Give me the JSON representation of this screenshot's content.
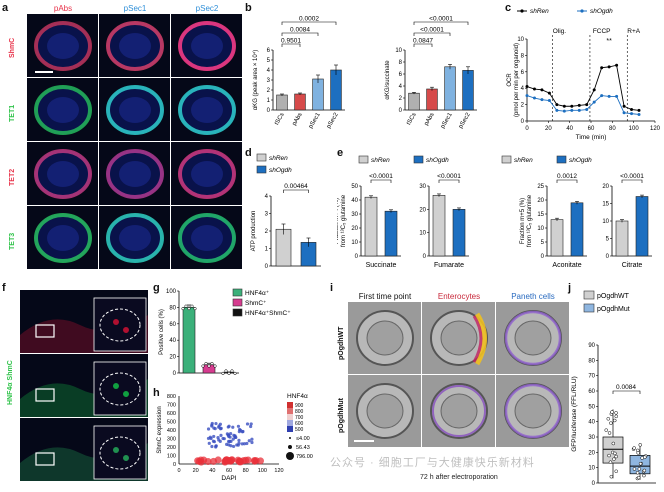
{
  "panels": {
    "a": "a",
    "b": "b",
    "c": "c",
    "d": "d",
    "e": "e",
    "f": "f",
    "g": "g",
    "h": "h",
    "i": "i",
    "j": "j"
  },
  "a": {
    "cols": [
      "pAbs",
      "pSec1",
      "pSec2"
    ],
    "rows": [
      "ShmC",
      "TET1",
      "TET2",
      "TET3"
    ],
    "colors": {
      "pAbs": "#e8334a",
      "pSec1": "#2f8fd8",
      "pSec2": "#2f8fd8",
      "ShmC": "#e8334a",
      "TET1": "#2fc34a",
      "TET2": "#e8334a",
      "TET3": "#2fc34a"
    }
  },
  "b": {
    "left": {
      "ylabel": "αKG (peak area × 10⁴)",
      "categories": [
        "tSCs",
        "pAbs",
        "pSec1",
        "pSec2"
      ],
      "values": [
        1.5,
        1.6,
        3.1,
        4.0
      ],
      "errors": [
        0.1,
        0.1,
        0.4,
        0.5
      ],
      "yticks": [
        "0",
        "1",
        "2",
        "3",
        "4",
        "5",
        "6"
      ],
      "ymax": 6,
      "brackets": [
        {
          "from": 0,
          "to": 3,
          "label": "0.0002"
        },
        {
          "from": 0,
          "to": 2,
          "label": "0.0084"
        },
        {
          "from": 0,
          "to": 1,
          "label": "0.9501"
        }
      ]
    },
    "right": {
      "ylabel": "αKG/succinate",
      "categories": [
        "tSCs",
        "pAbs",
        "pSec1",
        "pSec2"
      ],
      "values": [
        2.8,
        3.5,
        7.2,
        6.6
      ],
      "errors": [
        0.15,
        0.3,
        0.4,
        0.6
      ],
      "yticks": [
        "0",
        "2",
        "4",
        "6",
        "8",
        "10"
      ],
      "ymax": 10,
      "brackets": [
        {
          "from": 0,
          "to": 3,
          "label": "<0.0001"
        },
        {
          "from": 0,
          "to": 2,
          "label": "<0.0001"
        },
        {
          "from": 0,
          "to": 1,
          "label": "0.0847"
        }
      ]
    },
    "colors": [
      "#b0b0b0",
      "#d64a4a",
      "#7fb2e0",
      "#1d6fc0"
    ]
  },
  "c": {
    "legend": [
      {
        "label": "shRen",
        "color": "#000000"
      },
      {
        "label": "shOgdh",
        "color": "#1d6fc0"
      }
    ],
    "ylabel": "OCR\n(pmol per min per organoid)",
    "xlabel": "Time (min)",
    "yticks": [
      "0",
      "2",
      "4",
      "6",
      "8",
      "10"
    ],
    "xticks": [
      "0",
      "20",
      "40",
      "60",
      "80",
      "100",
      "120"
    ],
    "annotations": [
      "Olig.",
      "FCCP",
      "R+A"
    ],
    "sig": "**",
    "shRen": [
      [
        0,
        4.2
      ],
      [
        7,
        3.9
      ],
      [
        14,
        3.8
      ],
      [
        21,
        3.4
      ],
      [
        28,
        2.0
      ],
      [
        35,
        1.8
      ],
      [
        42,
        1.8
      ],
      [
        49,
        1.9
      ],
      [
        56,
        2.0
      ],
      [
        63,
        3.8
      ],
      [
        70,
        6.5
      ],
      [
        77,
        6.6
      ],
      [
        84,
        6.8
      ],
      [
        91,
        1.8
      ],
      [
        98,
        1.4
      ],
      [
        105,
        1.3
      ]
    ],
    "shOgdh": [
      [
        0,
        3.1
      ],
      [
        7,
        2.8
      ],
      [
        14,
        2.6
      ],
      [
        21,
        2.5
      ],
      [
        28,
        1.3
      ],
      [
        35,
        1.2
      ],
      [
        42,
        1.3
      ],
      [
        49,
        1.3
      ],
      [
        56,
        1.4
      ],
      [
        63,
        2.3
      ],
      [
        70,
        3.1
      ],
      [
        77,
        3.0
      ],
      [
        84,
        3.0
      ],
      [
        91,
        1.0
      ],
      [
        98,
        0.9
      ],
      [
        105,
        0.8
      ]
    ],
    "xmax": 120,
    "ymax": 10
  },
  "d": {
    "legend": [
      {
        "label": "shRen",
        "color": "#d0d0d0"
      },
      {
        "label": "shOgdh",
        "color": "#1d6fc0"
      }
    ],
    "ylabel": "ATP production",
    "yticks": [
      "0",
      "1",
      "2",
      "3",
      "4"
    ],
    "values": [
      2.1,
      1.35
    ],
    "errors": [
      0.3,
      0.25
    ],
    "p": "0.00464",
    "ymax": 4
  },
  "e": {
    "legend": [
      {
        "label": "shRen",
        "color": "#d0d0d0"
      },
      {
        "label": "shOgdh",
        "color": "#1d6fc0"
      }
    ],
    "ylabel1": "Fraction m+4 (%)\nfrom ¹³C₅ glutamine",
    "ylabel2": "Fraction m+5 (%)\nfrom ¹³C₅ glutamine",
    "charts": [
      {
        "name": "Succinate",
        "values": [
          42,
          32
        ],
        "p": "<0.0001",
        "yticks": [
          "0",
          "10",
          "20",
          "30",
          "40",
          "50"
        ],
        "ymax": 50
      },
      {
        "name": "Fumarate",
        "values": [
          26,
          20
        ],
        "p": "<0.0001",
        "yticks": [
          "0",
          "10",
          "20",
          "30"
        ],
        "ymax": 30
      },
      {
        "name": "Aconitate",
        "values": [
          13,
          19
        ],
        "p": "0.0012",
        "yticks": [
          "0",
          "5",
          "10",
          "15",
          "20",
          "25"
        ],
        "ymax": 25
      },
      {
        "name": "Citrate",
        "values": [
          10,
          17
        ],
        "p": "<0.0001",
        "yticks": [
          "0",
          "5",
          "10",
          "15",
          "20"
        ],
        "ymax": 20
      }
    ]
  },
  "f": {
    "rowlabel": "HNF4α ShmC"
  },
  "g": {
    "legend": [
      {
        "label": "HNF4α⁺",
        "color": "#3bb07a"
      },
      {
        "label": "ShmC⁺",
        "color": "#d63b8f"
      },
      {
        "label": "HNF4α⁺ShmC⁺",
        "color": "#111111"
      }
    ],
    "ylabel": "Positive cells (%)",
    "yticks": [
      "0",
      "20",
      "40",
      "60",
      "80",
      "100"
    ],
    "values": [
      80,
      10,
      1
    ],
    "ymax": 100
  },
  "h": {
    "ylabel": "ShmC expression",
    "xlabel": "DAPI",
    "xticks": [
      "0",
      "20",
      "40",
      "60",
      "80",
      "100",
      "120"
    ],
    "yticks": [
      "0",
      "100",
      "200",
      "300",
      "400",
      "500",
      "600",
      "700",
      "800"
    ],
    "legendtitle": "HNF4α",
    "scale": [
      "900",
      "800",
      "700",
      "600",
      "500"
    ],
    "sizes": [
      "≤4.00",
      "56.43",
      "796.00"
    ]
  },
  "i": {
    "cols": [
      "First time point",
      "Enterocytes",
      "Paneth cells"
    ],
    "colcolors": [
      "#111111",
      "#c8283a",
      "#2a6bc0"
    ],
    "rows": [
      "pOgdhWT",
      "pOgdhMut"
    ],
    "caption": "72 h after electroporation"
  },
  "j": {
    "legend": [
      {
        "label": "pOgdhWT",
        "color": "#d0d0d0"
      },
      {
        "label": "pOgdhMut",
        "color": "#8fb6e0"
      }
    ],
    "ylabel": "GFP/luciferase (FFL/RLU)",
    "yticks": [
      "0",
      "10",
      "20",
      "30",
      "40",
      "50",
      "60",
      "70",
      "80",
      "90"
    ],
    "p": "0.0084",
    "ymax": 90,
    "box1": {
      "min": 3,
      "q1": 13,
      "med": 22,
      "q3": 30,
      "max": 48
    },
    "box2": {
      "min": 2,
      "q1": 6,
      "med": 11,
      "q3": 18,
      "max": 26
    }
  },
  "watermark": "公众号 · 细胞工厂与大健康快乐新材料"
}
